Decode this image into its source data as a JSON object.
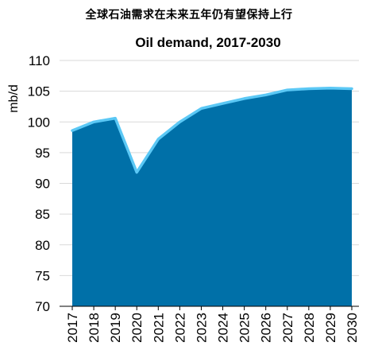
{
  "page": {
    "headline": "全球石油需求在未来五年仍有望保持上行"
  },
  "colors": {
    "area_fill": "#0070A8",
    "line": "#5BC8F5",
    "grid": "#D9D9D9"
  },
  "chart_data": {
    "type": "area",
    "title": "Oil demand, 2017-2030",
    "xlabel": "",
    "ylabel": "mb/d",
    "categories": [
      "2017",
      "2018",
      "2019",
      "2020",
      "2021",
      "2022",
      "2023",
      "2024",
      "2025",
      "2026",
      "2027",
      "2028",
      "2029",
      "2030"
    ],
    "values": [
      98.6,
      100.0,
      100.6,
      91.8,
      97.2,
      100.0,
      102.2,
      103.0,
      103.8,
      104.4,
      105.2,
      105.4,
      105.5,
      105.4
    ],
    "ylim": [
      70,
      110
    ],
    "yticks": [
      70,
      75,
      80,
      85,
      90,
      95,
      100,
      105,
      110
    ],
    "grid": true,
    "legend": "none"
  }
}
